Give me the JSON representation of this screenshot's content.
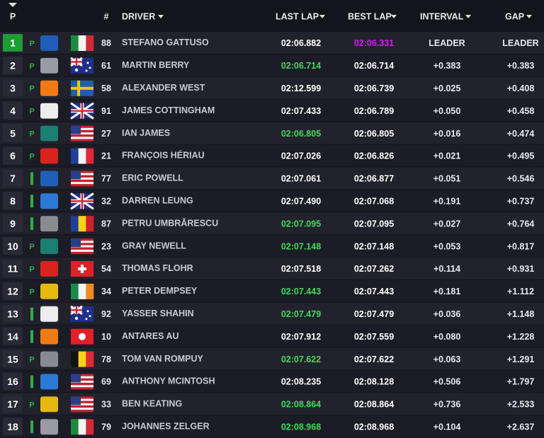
{
  "header": {
    "position": "P",
    "number": "#",
    "driver": "DRIVER",
    "last_lap": "LAST LAP",
    "best_lap": "BEST LAP",
    "interval": "INTERVAL",
    "gap": "GAP"
  },
  "rows": [
    {
      "position": 1,
      "status": "P",
      "number": 88,
      "driver": "STEFANO GATTUSO",
      "last_lap": "02:06.882",
      "best_lap": "02:06.331",
      "interval": "LEADER",
      "gap": "LEADER",
      "last_lap_color": "#ffffff",
      "best_lap_color": "#d21ef2"
    },
    {
      "position": 2,
      "status": "P",
      "number": 61,
      "driver": "MARTIN BERRY",
      "last_lap": "02:06.714",
      "best_lap": "02:06.714",
      "interval": "+0.383",
      "gap": "+0.383",
      "last_lap_color": "#3ddc5a",
      "best_lap_color": "#ffffff"
    },
    {
      "position": 3,
      "status": "P",
      "number": 58,
      "driver": "ALEXANDER WEST",
      "last_lap": "02:12.599",
      "best_lap": "02:06.739",
      "interval": "+0.025",
      "gap": "+0.408",
      "last_lap_color": "#ffffff",
      "best_lap_color": "#ffffff"
    },
    {
      "position": 4,
      "status": "P",
      "number": 91,
      "driver": "JAMES COTTINGHAM",
      "last_lap": "02:07.433",
      "best_lap": "02:06.789",
      "interval": "+0.050",
      "gap": "+0.458",
      "last_lap_color": "#ffffff",
      "best_lap_color": "#ffffff"
    },
    {
      "position": 5,
      "status": "P",
      "number": 27,
      "driver": "IAN JAMES",
      "last_lap": "02:06.805",
      "best_lap": "02:06.805",
      "interval": "+0.016",
      "gap": "+0.474",
      "last_lap_color": "#3ddc5a",
      "best_lap_color": "#ffffff"
    },
    {
      "position": 6,
      "status": "P",
      "number": 21,
      "driver": "FRANÇOIS HÉRIAU",
      "last_lap": "02:07.026",
      "best_lap": "02:06.826",
      "interval": "+0.021",
      "gap": "+0.495",
      "last_lap_color": "#ffffff",
      "best_lap_color": "#ffffff"
    },
    {
      "position": 7,
      "number": 77,
      "driver": "ERIC POWELL",
      "last_lap": "02:07.061",
      "best_lap": "02:06.877",
      "interval": "+0.051",
      "gap": "+0.546",
      "last_lap_color": "#ffffff",
      "best_lap_color": "#ffffff"
    },
    {
      "position": 8,
      "number": 32,
      "driver": "DARREN LEUNG",
      "last_lap": "02:07.490",
      "best_lap": "02:07.068",
      "interval": "+0.191",
      "gap": "+0.737",
      "last_lap_color": "#ffffff",
      "best_lap_color": "#ffffff"
    },
    {
      "position": 9,
      "number": 87,
      "driver": "PETRU UMBRĂRESCU",
      "last_lap": "02:07.095",
      "best_lap": "02:07.095",
      "interval": "+0.027",
      "gap": "+0.764",
      "last_lap_color": "#3ddc5a",
      "best_lap_color": "#ffffff"
    },
    {
      "position": 10,
      "status": "P",
      "number": 23,
      "driver": "GRAY NEWELL",
      "last_lap": "02:07.148",
      "best_lap": "02:07.148",
      "interval": "+0.053",
      "gap": "+0.817",
      "last_lap_color": "#3ddc5a",
      "best_lap_color": "#ffffff"
    },
    {
      "position": 11,
      "status": "P",
      "number": 54,
      "driver": "THOMAS FLOHR",
      "last_lap": "02:07.518",
      "best_lap": "02:07.262",
      "interval": "+0.114",
      "gap": "+0.931",
      "last_lap_color": "#ffffff",
      "best_lap_color": "#ffffff"
    },
    {
      "position": 12,
      "status": "P",
      "number": 34,
      "driver": "PETER DEMPSEY",
      "last_lap": "02:07.443",
      "best_lap": "02:07.443",
      "interval": "+0.181",
      "gap": "+1.112",
      "last_lap_color": "#3ddc5a",
      "best_lap_color": "#ffffff"
    },
    {
      "position": 13,
      "number": 92,
      "driver": "YASSER SHAHIN",
      "last_lap": "02:07.479",
      "best_lap": "02:07.479",
      "interval": "+0.036",
      "gap": "+1.148",
      "last_lap_color": "#3ddc5a",
      "best_lap_color": "#ffffff"
    },
    {
      "position": 14,
      "number": 10,
      "driver": "ANTARES AU",
      "last_lap": "02:07.912",
      "best_lap": "02:07.559",
      "interval": "+0.080",
      "gap": "+1.228",
      "last_lap_color": "#ffffff",
      "best_lap_color": "#ffffff"
    },
    {
      "position": 15,
      "status": "P",
      "number": 78,
      "driver": "TOM VAN ROMPUY",
      "last_lap": "02:07.622",
      "best_lap": "02:07.622",
      "interval": "+0.063",
      "gap": "+1.291",
      "last_lap_color": "#3ddc5a",
      "best_lap_color": "#ffffff"
    },
    {
      "position": 16,
      "number": 69,
      "driver": "ANTHONY MCINTOSH",
      "last_lap": "02:08.235",
      "best_lap": "02:08.128",
      "interval": "+0.506",
      "gap": "+1.797",
      "last_lap_color": "#ffffff",
      "best_lap_color": "#ffffff"
    },
    {
      "position": 17,
      "status": "P",
      "number": 33,
      "driver": "BEN KEATING",
      "last_lap": "02:08.864",
      "best_lap": "02:08.864",
      "interval": "+0.736",
      "gap": "+2.533",
      "last_lap_color": "#3ddc5a",
      "best_lap_color": "#ffffff"
    },
    {
      "position": 18,
      "number": 79,
      "driver": "JOHANNES ZELGER",
      "last_lap": "02:08.968",
      "best_lap": "02:08.968",
      "interval": "+0.104",
      "gap": "+2.637",
      "last_lap_color": "#3ddc5a",
      "best_lap_color": "#ffffff"
    }
  ]
}
